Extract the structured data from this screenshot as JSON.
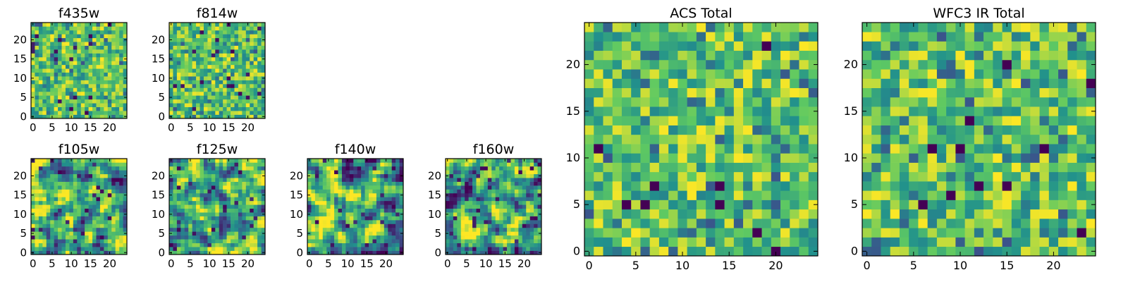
{
  "figure": {
    "colormap": [
      "#440154",
      "#3b528b",
      "#21918c",
      "#5ec962",
      "#fde725"
    ]
  },
  "chart_data": [
    {
      "type": "heatmap",
      "title": "f435w",
      "grid_size": [
        25,
        25
      ],
      "xlim": [
        -0.5,
        24.5
      ],
      "ylim": [
        -0.5,
        24.5
      ],
      "origin": "lower",
      "xticks": [
        0,
        5,
        10,
        15,
        20
      ],
      "yticks": [
        0,
        5,
        10,
        15,
        20
      ],
      "pattern": "noise",
      "seed": 11
    },
    {
      "type": "heatmap",
      "title": "f814w",
      "grid_size": [
        25,
        25
      ],
      "xlim": [
        -0.5,
        24.5
      ],
      "ylim": [
        -0.5,
        24.5
      ],
      "origin": "lower",
      "xticks": [
        0,
        5,
        10,
        15,
        20
      ],
      "yticks": [
        0,
        5,
        10,
        15,
        20
      ],
      "pattern": "noise",
      "seed": 23
    },
    {
      "type": "heatmap",
      "title": "f105w",
      "grid_size": [
        25,
        25
      ],
      "xlim": [
        -0.5,
        24.5
      ],
      "ylim": [
        -0.5,
        24.5
      ],
      "origin": "lower",
      "xticks": [
        0,
        5,
        10,
        15,
        20
      ],
      "yticks": [
        0,
        5,
        10,
        15,
        20
      ],
      "pattern": "smooth",
      "seed": 37
    },
    {
      "type": "heatmap",
      "title": "f125w",
      "grid_size": [
        25,
        25
      ],
      "xlim": [
        -0.5,
        24.5
      ],
      "ylim": [
        -0.5,
        24.5
      ],
      "origin": "lower",
      "xticks": [
        0,
        5,
        10,
        15,
        20
      ],
      "yticks": [
        0,
        5,
        10,
        15,
        20
      ],
      "pattern": "smooth",
      "seed": 41
    },
    {
      "type": "heatmap",
      "title": "f140w",
      "grid_size": [
        25,
        25
      ],
      "xlim": [
        -0.5,
        24.5
      ],
      "ylim": [
        -0.5,
        24.5
      ],
      "origin": "lower",
      "xticks": [
        0,
        5,
        10,
        15,
        20
      ],
      "yticks": [
        0,
        5,
        10,
        15,
        20
      ],
      "pattern": "smooth",
      "seed": 53
    },
    {
      "type": "heatmap",
      "title": "f160w",
      "grid_size": [
        25,
        25
      ],
      "xlim": [
        -0.5,
        24.5
      ],
      "ylim": [
        -0.5,
        24.5
      ],
      "origin": "lower",
      "xticks": [
        0,
        5,
        10,
        15,
        20
      ],
      "yticks": [
        0,
        5,
        10,
        15,
        20
      ],
      "pattern": "smooth",
      "seed": 67
    },
    {
      "type": "heatmap",
      "title": "ACS Total",
      "grid_size": [
        25,
        25
      ],
      "xlim": [
        -0.5,
        24.5
      ],
      "ylim": [
        -0.5,
        24.5
      ],
      "origin": "lower",
      "xticks": [
        0,
        5,
        10,
        15,
        20
      ],
      "yticks": [
        0,
        5,
        10,
        15,
        20
      ],
      "pattern": "blocky",
      "seed": 79,
      "dark_cells": [
        [
          1,
          11
        ],
        [
          4,
          5
        ],
        [
          6,
          5
        ],
        [
          7,
          7
        ],
        [
          14,
          5
        ],
        [
          14,
          7
        ],
        [
          18,
          2
        ],
        [
          19,
          22
        ],
        [
          20,
          0
        ]
      ]
    },
    {
      "type": "heatmap",
      "title": "WFC3 IR Total",
      "grid_size": [
        25,
        25
      ],
      "xlim": [
        -0.5,
        24.5
      ],
      "ylim": [
        -0.5,
        24.5
      ],
      "origin": "lower",
      "xticks": [
        0,
        5,
        10,
        15,
        20
      ],
      "yticks": [
        0,
        5,
        10,
        15,
        20
      ],
      "pattern": "blocky",
      "seed": 97,
      "dark_cells": [
        [
          6,
          5
        ],
        [
          7,
          11
        ],
        [
          9,
          6
        ],
        [
          10,
          11
        ],
        [
          12,
          7
        ],
        [
          11,
          14
        ],
        [
          15,
          7
        ],
        [
          15,
          20
        ],
        [
          19,
          11
        ],
        [
          23,
          2
        ],
        [
          24,
          18
        ]
      ]
    }
  ]
}
